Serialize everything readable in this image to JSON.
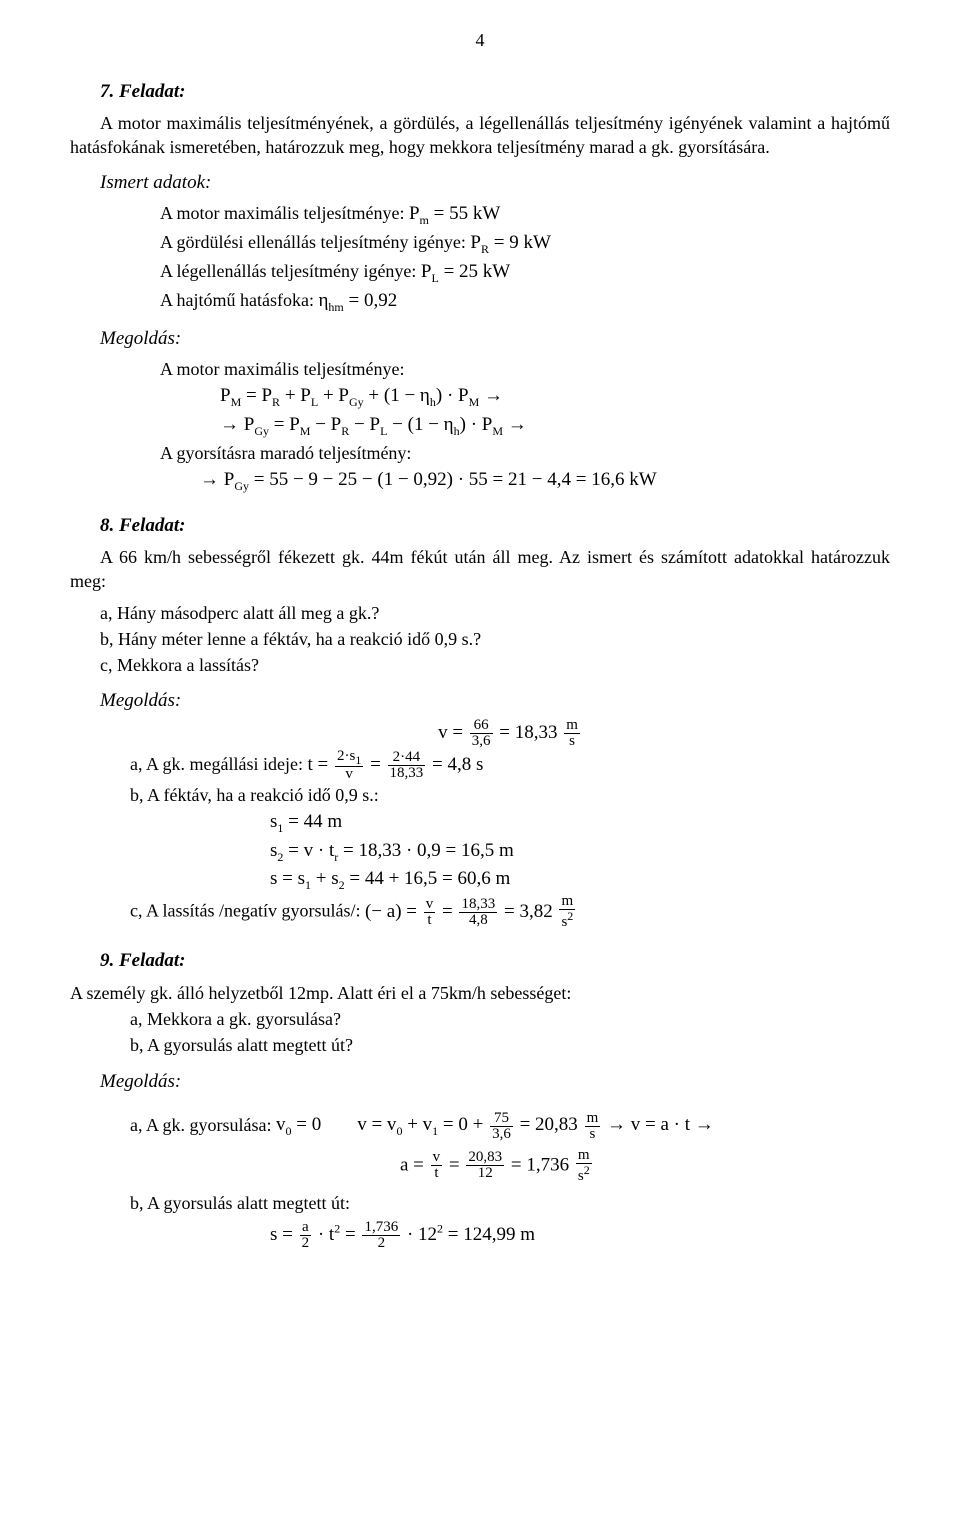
{
  "page_number": "4",
  "p7": {
    "title": "7. Feladat:",
    "intro": "A motor maximális teljesítményének, a gördülés, a légellenállás teljesítmény igényének valamint a hajtómű hatásfokának ismeretében, határozzuk meg, hogy mekkora teljesítmény marad a gk. gyorsítására.",
    "data_title": "Ismert adatok:",
    "d1_label": "A motor maximális teljesítménye: ",
    "d1_eq": "P<sub class='sub'>m</sub> = 55 kW",
    "d2_label": "A gördülési ellenállás teljesítmény igénye: ",
    "d2_eq": "P<sub class='sub'>R</sub> = 9 kW",
    "d3_label": "A légellenállás teljesítmény igénye: ",
    "d3_eq": "P<sub class='sub'>L</sub> = 25 kW",
    "d4_label": "A hajtómű hatásfoka: ",
    "d4_eq": "η<sub class='sub'>hm</sub> = 0,92",
    "sol_title": "Megoldás:",
    "sol_1_label": "A motor maximális teljesítménye:",
    "sol_eq1": "P<sub class='sub'>M</sub> = P<sub class='sub'>R</sub> + P<sub class='sub'>L</sub> + P<sub class='sub'>Gy</sub> + (1 − η<sub class='sub'>h</sub>) · P<sub class='sub'>M</sub> →",
    "sol_eq2": "→ P<sub class='sub'>Gy</sub> = P<sub class='sub'>M</sub> − P<sub class='sub'>R</sub> − P<sub class='sub'>L</sub> − (1 − η<sub class='sub'>h</sub>) · P<sub class='sub'>M</sub> →",
    "sol_2_label": "A gyorsításra maradó teljesítmény:",
    "sol_eq3": "→ P<sub class='sub'>Gy</sub> = 55 − 9 − 25 − (1 − 0,92) · 55 = 21 − 4,4 = 16,6 kW"
  },
  "p8": {
    "title": "8. Feladat:",
    "intro": "A 66 km/h sebességről fékezett gk. 44m fékút után áll meg. Az ismert és számított adatokkal határozzuk meg:",
    "qa": "a, Hány másodperc alatt áll meg a gk.?",
    "qb": "b, Hány méter lenne a féktáv, ha a reakció idő 0,9 s.?",
    "qc": "c, Mekkora a lassítás?",
    "sol_title": "Megoldás:",
    "eq_v": "v = <span class='frac'><span class='num'>66</span><span class='den'>3,6</span></span> = 18,33 <span class='frac'><span class='num'>m</span><span class='den'>s</span></span>",
    "a_label": "a, A gk. megállási ideje: ",
    "a_eq": "t = <span class='frac'><span class='num'>2·s<sub class='sub'>1</sub></span><span class='den'>v</span></span> = <span class='frac'><span class='num'>2·44</span><span class='den'>18,33</span></span> = 4,8 s",
    "b_label": "b, A féktáv, ha a reakció idő 0,9 s.:",
    "b_eq1": "s<sub class='sub'>1</sub> = 44 m",
    "b_eq2": "s<sub class='sub'>2</sub> = v · t<sub class='sub'>r</sub> = 18,33 · 0,9 = 16,5 m",
    "b_eq3": "s = s<sub class='sub'>1</sub> + s<sub class='sub'>2</sub> = 44 + 16,5 = 60,6 m",
    "c_label": "c, A lassítás /negatív gyorsulás/: ",
    "c_eq": "(− a) = <span class='frac'><span class='num'>v</span><span class='den'>t</span></span> = <span class='frac'><span class='num'>18,33</span><span class='den'>4,8</span></span> = 3,82 <span class='frac'><span class='num'>m</span><span class='den'>s<sup class='sup'>2</sup></span></span>"
  },
  "p9": {
    "title": "9. Feladat:",
    "intro": "A személy gk. álló helyzetből 12mp. Alatt éri el a 75km/h sebességet:",
    "qa": "a, Mekkora a gk. gyorsulása?",
    "qb": "b, A gyorsulás alatt megtett út?",
    "sol_title": "Megoldás:",
    "a_label": "a, A gk. gyorsulása: ",
    "a_eq1_left": "v<sub class='sub'>0</sub> = 0",
    "a_eq1_right": "v = v<sub class='sub'>0</sub> + v<sub class='sub'>1</sub> = 0 + <span class='frac'><span class='num'>75</span><span class='den'>3,6</span></span> = 20,83 <span class='frac'><span class='num'>m</span><span class='den'>s</span></span> → v = a · t →",
    "a_eq2": "a = <span class='frac'><span class='num'>v</span><span class='den'>t</span></span> = <span class='frac'><span class='num'>20,83</span><span class='den'>12</span></span> = 1,736 <span class='frac'><span class='num'>m</span><span class='den'>s<sup class='sup'>2</sup></span></span>",
    "b_label": "b, A gyorsulás alatt megtett út:",
    "b_eq": "s = <span class='frac'><span class='num'>a</span><span class='den'>2</span></span> · t<sup class='sup'>2</sup> = <span class='frac'><span class='num'>1,736</span><span class='den'>2</span></span> · 12<sup class='sup'>2</sup> = 124,99 m"
  }
}
